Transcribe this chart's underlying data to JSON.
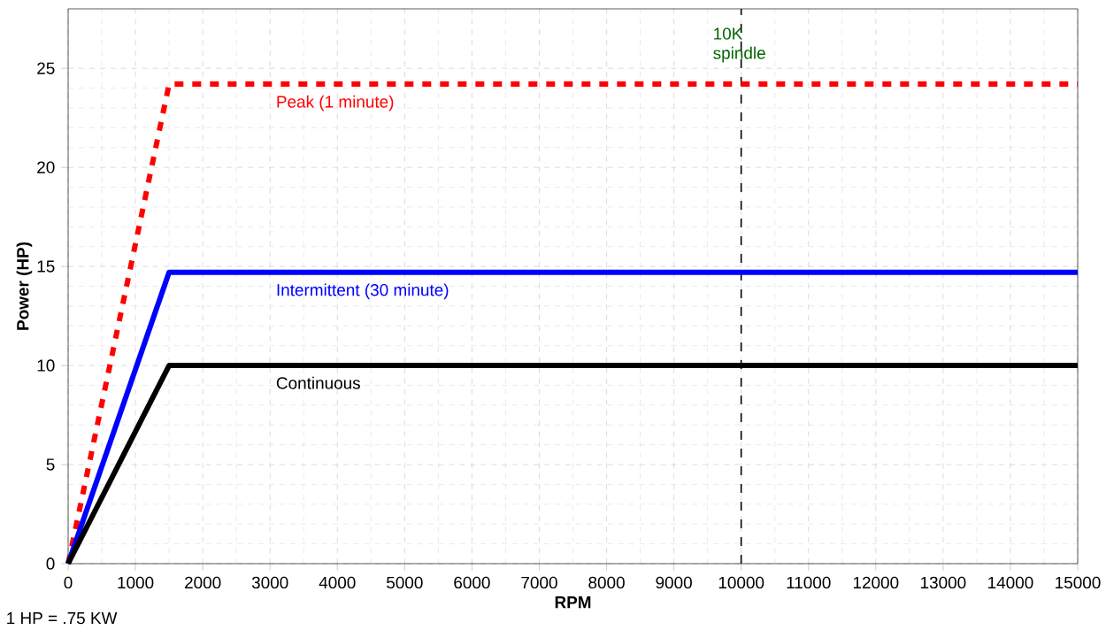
{
  "chart_data": {
    "type": "line",
    "xlabel": "RPM",
    "ylabel": "Power (HP)",
    "xlim": [
      0,
      15000
    ],
    "ylim": [
      0,
      28
    ],
    "xticks": [
      0,
      1000,
      2000,
      3000,
      4000,
      5000,
      6000,
      7000,
      8000,
      9000,
      10000,
      11000,
      12000,
      13000,
      14000,
      15000
    ],
    "yticks": [
      0,
      5,
      10,
      15,
      20,
      25
    ],
    "grid": true,
    "legend": false,
    "series": [
      {
        "name": "Peak (1 minute)",
        "color": "#ff0000",
        "line_style": "dashed",
        "x": [
          0,
          1500,
          15000
        ],
        "values": [
          0,
          24.2,
          24.2
        ]
      },
      {
        "name": "Intermittent (30 minute)",
        "color": "#0000ff",
        "line_style": "solid",
        "x": [
          0,
          1500,
          15000
        ],
        "values": [
          0,
          14.7,
          14.7
        ]
      },
      {
        "name": "Continuous",
        "color": "#000000",
        "line_style": "solid",
        "x": [
          0,
          1500,
          15000
        ],
        "values": [
          0,
          10,
          10
        ]
      }
    ],
    "ref_lines": [
      {
        "axis": "x",
        "value": 10000,
        "label": "10K spindle",
        "color": "#000000",
        "line_style": "dashed"
      }
    ],
    "annotations": [
      "1 HP = .75 KW"
    ]
  }
}
